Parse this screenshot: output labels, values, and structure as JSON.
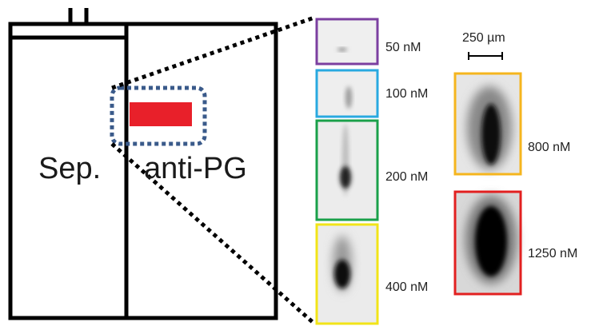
{
  "diagram": {
    "channels": {
      "left": "Sep.",
      "right": "anti-PG"
    },
    "scale_bar": "250 µm",
    "panels": [
      {
        "label": "50 nM"
      },
      {
        "label": "100 nM"
      },
      {
        "label": "200 nM"
      },
      {
        "label": "400 nM"
      },
      {
        "label": "800 nM"
      },
      {
        "label": "1250 nM"
      }
    ]
  }
}
